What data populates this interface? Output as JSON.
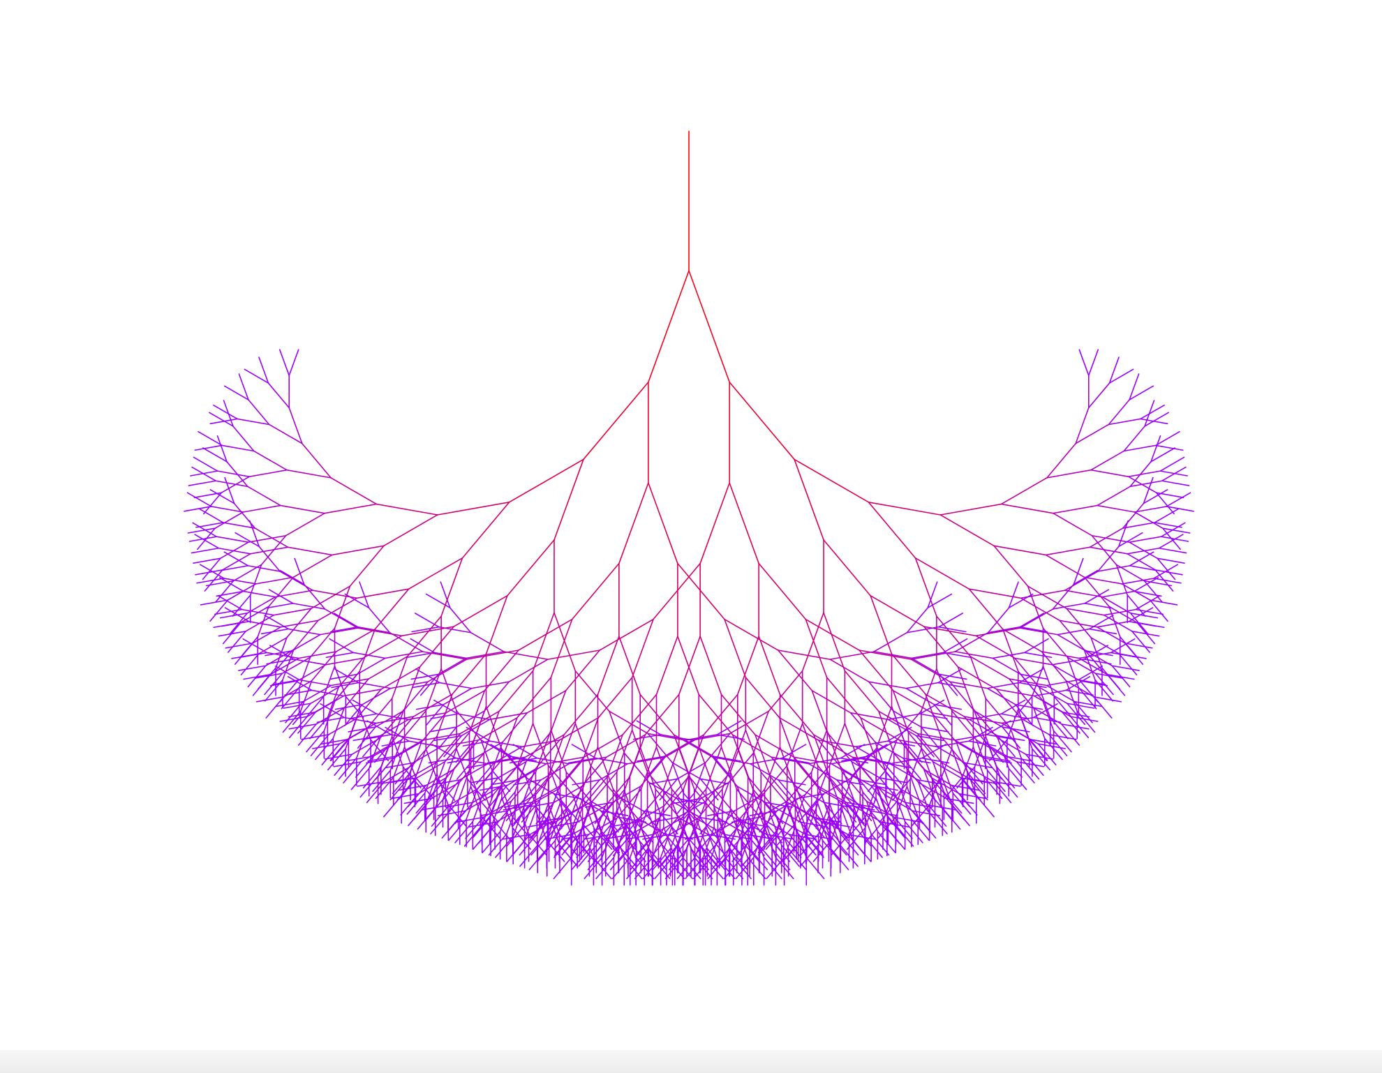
{
  "tree": {
    "depth": 10,
    "branch_angle_deg": 20,
    "length_ratio": 0.85,
    "trunk_direction": "down",
    "start_color": "#ff0000",
    "end_color": "#9900ff",
    "background": "#ffffff"
  },
  "bottom_bar": {
    "color": "#efefef"
  }
}
